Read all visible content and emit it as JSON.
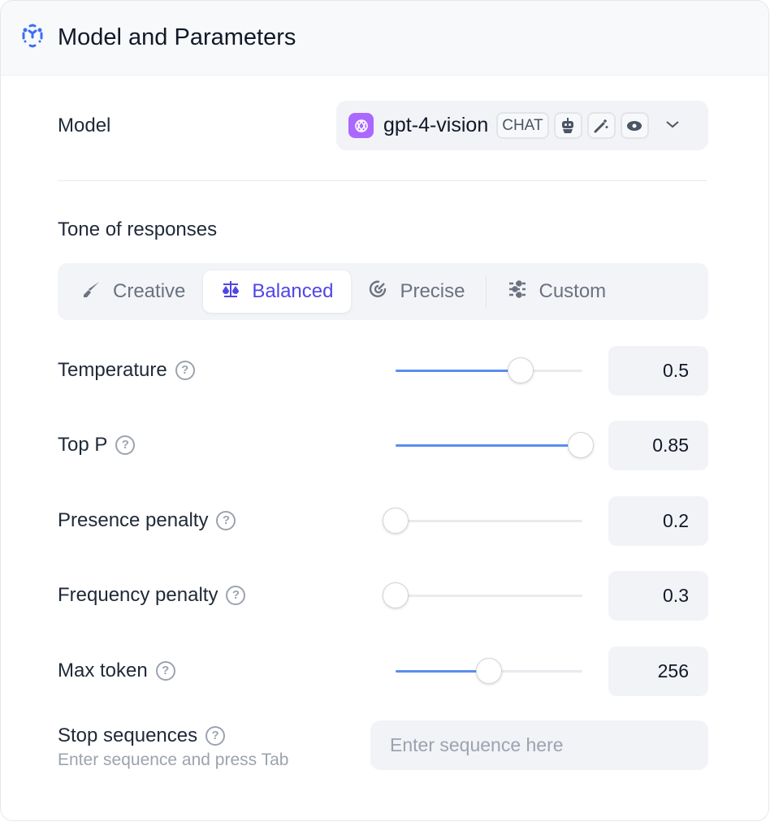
{
  "header": {
    "title": "Model and Parameters",
    "icon": "cube-dashed-icon"
  },
  "model": {
    "label": "Model",
    "name": "gpt-4-vision",
    "badge": "CHAT",
    "feature_icons": [
      "robot-icon",
      "magic-wand-icon",
      "eye-icon"
    ]
  },
  "tone": {
    "label": "Tone of responses",
    "tabs": [
      {
        "label": "Creative",
        "icon": "brush-icon"
      },
      {
        "label": "Balanced",
        "icon": "scale-icon",
        "active": true
      },
      {
        "label": "Precise",
        "icon": "target-icon"
      },
      {
        "label": "Custom",
        "icon": "sliders-icon"
      }
    ]
  },
  "params": [
    {
      "label": "Temperature",
      "value": "0.5",
      "fill": 0.67
    },
    {
      "label": "Top P",
      "value": "0.85",
      "fill": 0.99
    },
    {
      "label": "Presence penalty",
      "value": "0.2",
      "fill": 0
    },
    {
      "label": "Frequency penalty",
      "value": "0.3",
      "fill": 0
    },
    {
      "label": "Max token",
      "value": "256",
      "fill": 0.5
    }
  ],
  "stop": {
    "label": "Stop sequences",
    "hint": "Enter sequence and press Tab",
    "placeholder": "Enter sequence here",
    "value": ""
  },
  "colors": {
    "accent": "#4f46e5",
    "slider": "#5b8def",
    "gpt": "#ab68ff"
  }
}
